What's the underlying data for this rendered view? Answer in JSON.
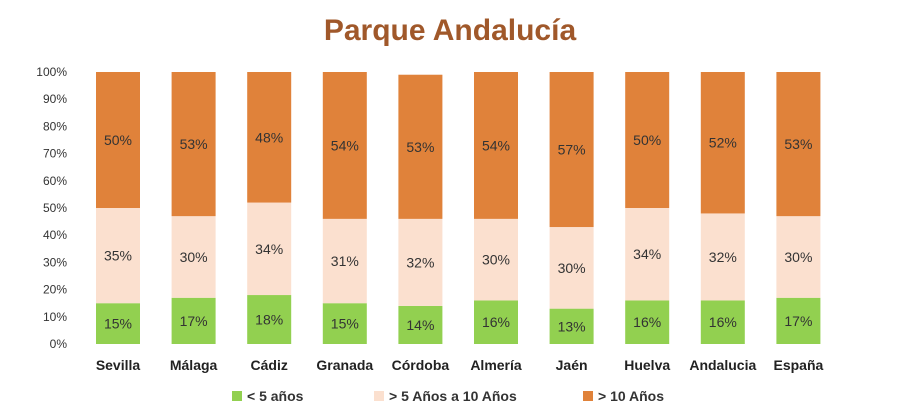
{
  "chart_data": {
    "type": "bar",
    "stacked": true,
    "title": "Parque Andalucía",
    "categories": [
      "Sevilla",
      "Málaga",
      "Cádiz",
      "Granada",
      "Córdoba",
      "Almería",
      "Jaén",
      "Huelva",
      "Andalucia",
      "España"
    ],
    "series": [
      {
        "name": "< 5 años",
        "color": "#92d050",
        "values": [
          15,
          17,
          18,
          15,
          14,
          16,
          13,
          16,
          16,
          17
        ]
      },
      {
        "name": "> 5 Años a 10 Años",
        "color": "#fbe0cf",
        "values": [
          35,
          30,
          34,
          31,
          32,
          30,
          30,
          34,
          32,
          30
        ]
      },
      {
        "name": "> 10 Años",
        "color": "#e0823a",
        "values": [
          50,
          53,
          48,
          54,
          53,
          54,
          57,
          50,
          52,
          53
        ]
      }
    ],
    "yticks": [
      "0%",
      "10%",
      "20%",
      "30%",
      "40%",
      "50%",
      "60%",
      "70%",
      "80%",
      "90%",
      "100%"
    ],
    "ylim": [
      0,
      100
    ],
    "value_suffix": "%",
    "grid": false,
    "legend_position": "bottom"
  }
}
